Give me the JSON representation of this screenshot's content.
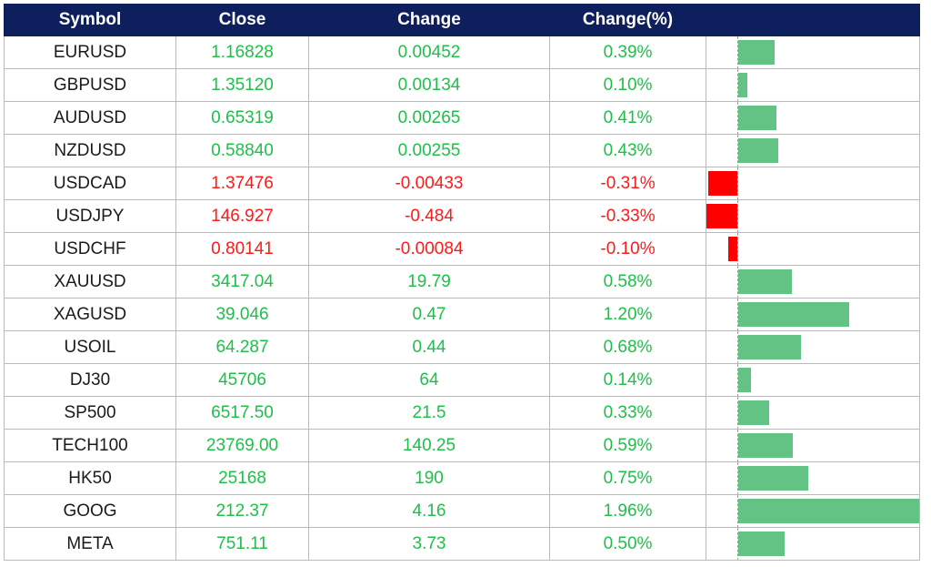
{
  "header": {
    "symbol": "Symbol",
    "close": "Close",
    "change": "Change",
    "change_pct": "Change(%)"
  },
  "colors": {
    "header_bg": "#0d1f5c",
    "positive": "#1fbf4a",
    "negative": "#ff1a1a",
    "bar_positive": "#63c384",
    "bar_negative": "#ff0000"
  },
  "chart_data": {
    "type": "table",
    "columns": [
      "Symbol",
      "Close",
      "Change",
      "Change(%)"
    ],
    "rows": [
      {
        "symbol": "EURUSD",
        "close": "1.16828",
        "change": "0.00452",
        "change_pct": "0.39%",
        "pct_value": 0.39
      },
      {
        "symbol": "GBPUSD",
        "close": "1.35120",
        "change": "0.00134",
        "change_pct": "0.10%",
        "pct_value": 0.1
      },
      {
        "symbol": "AUDUSD",
        "close": "0.65319",
        "change": "0.00265",
        "change_pct": "0.41%",
        "pct_value": 0.41
      },
      {
        "symbol": "NZDUSD",
        "close": "0.58840",
        "change": "0.00255",
        "change_pct": "0.43%",
        "pct_value": 0.43
      },
      {
        "symbol": "USDCAD",
        "close": "1.37476",
        "change": "-0.00433",
        "change_pct": "-0.31%",
        "pct_value": -0.31
      },
      {
        "symbol": "USDJPY",
        "close": "146.927",
        "change": "-0.484",
        "change_pct": "-0.33%",
        "pct_value": -0.33
      },
      {
        "symbol": "USDCHF",
        "close": "0.80141",
        "change": "-0.00084",
        "change_pct": "-0.10%",
        "pct_value": -0.1
      },
      {
        "symbol": "XAUUSD",
        "close": "3417.04",
        "change": "19.79",
        "change_pct": "0.58%",
        "pct_value": 0.58
      },
      {
        "symbol": "XAGUSD",
        "close": "39.046",
        "change": "0.47",
        "change_pct": "1.20%",
        "pct_value": 1.2
      },
      {
        "symbol": "USOIL",
        "close": "64.287",
        "change": "0.44",
        "change_pct": "0.68%",
        "pct_value": 0.68
      },
      {
        "symbol": "DJ30",
        "close": "45706",
        "change": "64",
        "change_pct": "0.14%",
        "pct_value": 0.14
      },
      {
        "symbol": "SP500",
        "close": "6517.50",
        "change": "21.5",
        "change_pct": "0.33%",
        "pct_value": 0.33
      },
      {
        "symbol": "TECH100",
        "close": "23769.00",
        "change": "140.25",
        "change_pct": "0.59%",
        "pct_value": 0.59
      },
      {
        "symbol": "HK50",
        "close": "25168",
        "change": "190",
        "change_pct": "0.75%",
        "pct_value": 0.75
      },
      {
        "symbol": "GOOG",
        "close": "212.37",
        "change": "4.16",
        "change_pct": "1.96%",
        "pct_value": 1.96
      },
      {
        "symbol": "META",
        "close": "751.11",
        "change": "3.73",
        "change_pct": "0.50%",
        "pct_value": 0.5
      }
    ]
  }
}
